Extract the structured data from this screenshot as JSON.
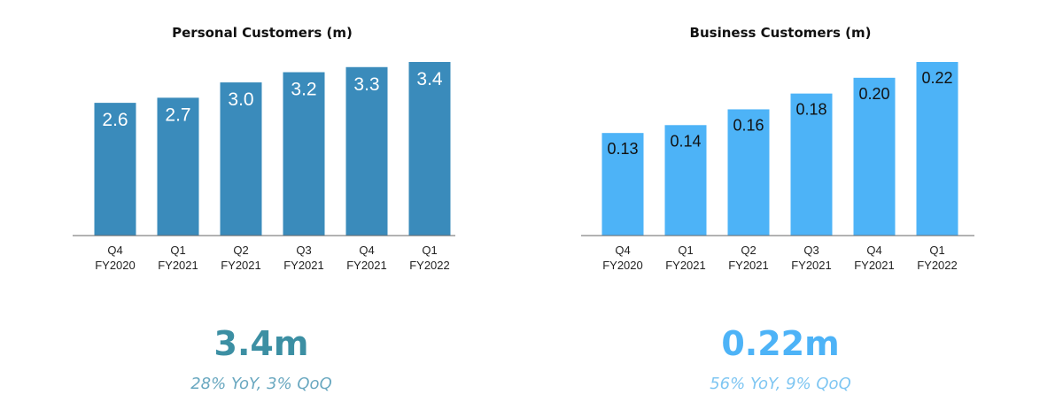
{
  "colors": {
    "personal_bar": "#3a8bbb",
    "business_bar": "#4db3f7",
    "personal_value": "#3c8fa3",
    "personal_sub": "#6aa8c0",
    "business_value": "#4db3f7",
    "business_sub": "#7fc6f2",
    "axis": "#666666"
  },
  "chart_data": [
    {
      "type": "bar",
      "title": "Personal Customers (m)",
      "categories": [
        [
          "Q4",
          "FY2020"
        ],
        [
          "Q1",
          "FY2021"
        ],
        [
          "Q2",
          "FY2021"
        ],
        [
          "Q3",
          "FY2021"
        ],
        [
          "Q4",
          "FY2021"
        ],
        [
          "Q1",
          "FY2022"
        ]
      ],
      "values": [
        2.6,
        2.7,
        3.0,
        3.2,
        3.3,
        3.4
      ],
      "labels": [
        "2.6",
        "2.7",
        "3.0",
        "3.2",
        "3.3",
        "3.4"
      ],
      "ylim": [
        0,
        3.4
      ],
      "grid": false
    },
    {
      "type": "bar",
      "title": "Business Customers (m)",
      "categories": [
        [
          "Q4",
          "FY2020"
        ],
        [
          "Q1",
          "FY2021"
        ],
        [
          "Q2",
          "FY2021"
        ],
        [
          "Q3",
          "FY2021"
        ],
        [
          "Q4",
          "FY2021"
        ],
        [
          "Q1",
          "FY2022"
        ]
      ],
      "values": [
        0.13,
        0.14,
        0.16,
        0.18,
        0.2,
        0.22
      ],
      "labels": [
        "0.13",
        "0.14",
        "0.16",
        "0.18",
        "0.20",
        "0.22"
      ],
      "ylim": [
        0,
        0.22
      ],
      "grid": false
    }
  ],
  "summaries": [
    {
      "value": "3.4m",
      "sub": "28% YoY, 3% QoQ"
    },
    {
      "value": "0.22m",
      "sub": "56% YoY, 9% QoQ"
    }
  ]
}
